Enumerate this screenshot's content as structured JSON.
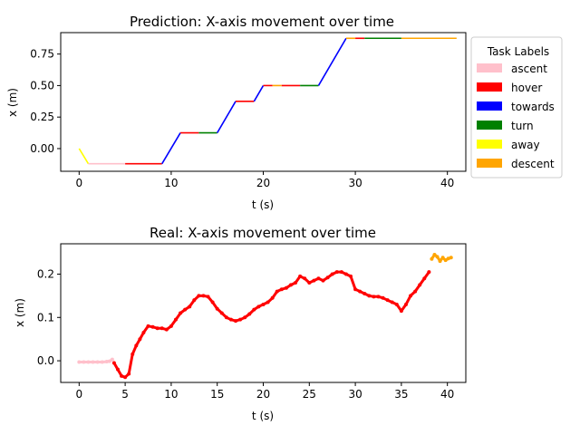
{
  "chart_data": [
    {
      "type": "line",
      "title": "Prediction: X-axis movement over time",
      "xlabel": "t (s)",
      "ylabel": "x (m)",
      "xlim": [
        -2,
        42
      ],
      "ylim": [
        -0.18,
        0.92
      ],
      "xticks": [
        0,
        10,
        20,
        30,
        40
      ],
      "yticks": [
        0.0,
        0.25,
        0.5,
        0.75
      ],
      "ytick_labels": [
        "0.00",
        "0.25",
        "0.50",
        "0.75"
      ],
      "segments": [
        {
          "label": "away",
          "x": [
            0,
            1
          ],
          "y": [
            0.0,
            -0.12
          ]
        },
        {
          "label": "ascent",
          "x": [
            1,
            5
          ],
          "y": [
            -0.12,
            -0.12
          ]
        },
        {
          "label": "hover",
          "x": [
            5,
            9
          ],
          "y": [
            -0.12,
            -0.12
          ]
        },
        {
          "label": "towards",
          "x": [
            9,
            11
          ],
          "y": [
            -0.12,
            0.125
          ]
        },
        {
          "label": "hover",
          "x": [
            11,
            13
          ],
          "y": [
            0.125,
            0.125
          ]
        },
        {
          "label": "turn",
          "x": [
            13,
            15
          ],
          "y": [
            0.125,
            0.125
          ]
        },
        {
          "label": "towards",
          "x": [
            15,
            17
          ],
          "y": [
            0.125,
            0.375
          ]
        },
        {
          "label": "hover",
          "x": [
            17,
            19
          ],
          "y": [
            0.375,
            0.375
          ]
        },
        {
          "label": "towards",
          "x": [
            19,
            20
          ],
          "y": [
            0.375,
            0.5
          ]
        },
        {
          "label": "hover",
          "x": [
            20,
            21
          ],
          "y": [
            0.5,
            0.5
          ]
        },
        {
          "label": "descent",
          "x": [
            21,
            22
          ],
          "y": [
            0.5,
            0.5
          ]
        },
        {
          "label": "hover",
          "x": [
            22,
            24
          ],
          "y": [
            0.5,
            0.5
          ]
        },
        {
          "label": "turn",
          "x": [
            24,
            26
          ],
          "y": [
            0.5,
            0.5
          ]
        },
        {
          "label": "towards",
          "x": [
            26,
            29
          ],
          "y": [
            0.5,
            0.875
          ]
        },
        {
          "label": "descent",
          "x": [
            29,
            30
          ],
          "y": [
            0.875,
            0.875
          ]
        },
        {
          "label": "hover",
          "x": [
            30,
            31
          ],
          "y": [
            0.875,
            0.875
          ]
        },
        {
          "label": "turn",
          "x": [
            31,
            35
          ],
          "y": [
            0.875,
            0.875
          ]
        },
        {
          "label": "descent",
          "x": [
            35,
            41
          ],
          "y": [
            0.875,
            0.875
          ]
        }
      ],
      "legend": {
        "title": "Task Labels",
        "placement": "outside-right",
        "entries": [
          {
            "label": "ascent",
            "color": "#ffc0cb"
          },
          {
            "label": "hover",
            "color": "#ff0000"
          },
          {
            "label": "towards",
            "color": "#0000ff"
          },
          {
            "label": "turn",
            "color": "#008000"
          },
          {
            "label": "away",
            "color": "#ffff00"
          },
          {
            "label": "descent",
            "color": "#ffa500"
          }
        ]
      }
    },
    {
      "type": "scatter",
      "title": "Real: X-axis movement over time",
      "xlabel": "t (s)",
      "ylabel": "x (m)",
      "xlim": [
        -2,
        42
      ],
      "ylim": [
        -0.05,
        0.27
      ],
      "xticks": [
        0,
        5,
        10,
        15,
        20,
        25,
        30,
        35,
        40
      ],
      "yticks": [
        0.0,
        0.1,
        0.2
      ],
      "ytick_labels": [
        "0.0",
        "0.1",
        "0.2"
      ],
      "points": [
        {
          "label": "ascent",
          "x": [
            0,
            0.5,
            1,
            1.5,
            2,
            2.5,
            3,
            3.3,
            3.6
          ],
          "y": [
            -0.003,
            -0.003,
            -0.003,
            -0.003,
            -0.003,
            -0.003,
            -0.002,
            -0.001,
            0.003
          ]
        },
        {
          "label": "hover",
          "x": [
            3.8,
            4.2,
            4.6,
            5.0,
            5.4,
            5.8,
            6.2,
            6.6,
            7.0,
            7.5,
            8.0,
            8.5,
            9.0,
            9.5,
            10.0,
            10.5,
            11.0,
            11.5,
            12.0,
            12.5,
            13.0,
            13.5,
            14.0,
            14.5,
            15.0,
            15.5,
            16.0,
            16.5,
            17.0,
            17.5,
            18.0,
            18.5,
            19.0,
            19.5,
            20.0,
            20.5,
            21.0,
            21.5,
            22.0,
            22.5,
            23.0,
            23.5,
            24.0,
            24.5,
            25.0,
            25.5,
            26.0,
            26.5,
            27.0,
            27.5,
            28.0,
            28.5,
            29.0,
            29.5,
            30.0,
            30.5,
            31.0,
            31.5,
            32.0,
            32.5,
            33.0,
            33.5,
            34.0,
            34.5,
            35.0,
            35.5,
            36.0,
            36.5,
            37.0,
            37.5,
            38.0
          ],
          "y": [
            -0.005,
            -0.02,
            -0.035,
            -0.038,
            -0.03,
            0.015,
            0.035,
            0.05,
            0.065,
            0.08,
            0.078,
            0.075,
            0.075,
            0.072,
            0.08,
            0.095,
            0.11,
            0.118,
            0.125,
            0.14,
            0.15,
            0.15,
            0.148,
            0.135,
            0.12,
            0.11,
            0.1,
            0.095,
            0.092,
            0.095,
            0.1,
            0.108,
            0.118,
            0.125,
            0.13,
            0.135,
            0.145,
            0.16,
            0.165,
            0.168,
            0.175,
            0.18,
            0.195,
            0.19,
            0.18,
            0.185,
            0.19,
            0.185,
            0.192,
            0.2,
            0.205,
            0.205,
            0.2,
            0.195,
            0.165,
            0.16,
            0.155,
            0.15,
            0.148,
            0.148,
            0.145,
            0.14,
            0.135,
            0.13,
            0.115,
            0.13,
            0.15,
            0.16,
            0.175,
            0.19,
            0.205
          ]
        },
        {
          "label": "descent",
          "x": [
            38.3,
            38.6,
            38.9,
            39.2,
            39.5,
            39.8,
            40.1,
            40.4
          ],
          "y": [
            0.235,
            0.245,
            0.24,
            0.23,
            0.238,
            0.232,
            0.236,
            0.238
          ]
        }
      ]
    }
  ]
}
